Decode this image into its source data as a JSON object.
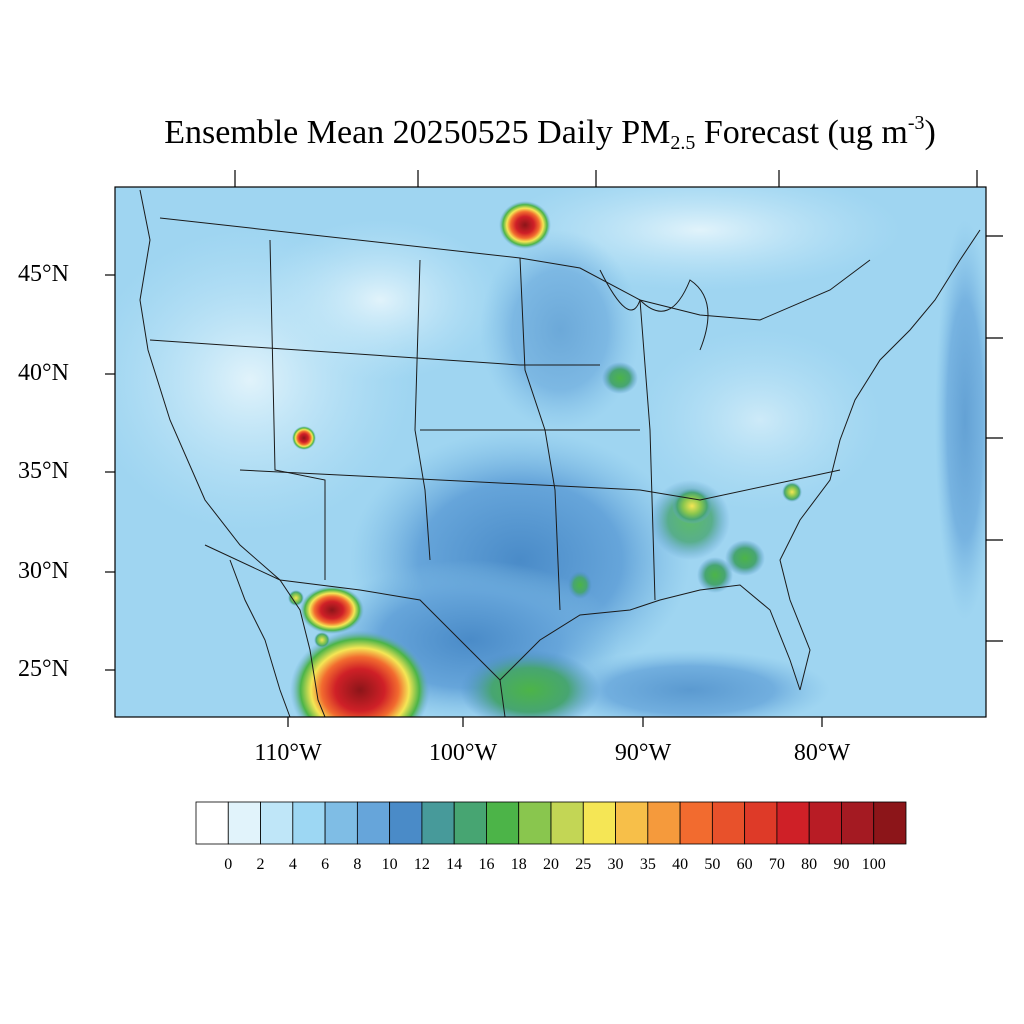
{
  "title": {
    "prefix": "Ensemble Mean 20250525 Daily PM",
    "subscript": "2.5",
    "middle": " Forecast (ug m",
    "superscript": "-3",
    "suffix": ")"
  },
  "axes": {
    "lat_labels": [
      "45°N",
      "40°N",
      "35°N",
      "30°N",
      "25°N"
    ],
    "lon_labels": [
      "110°W",
      "100°W",
      "90°W",
      "80°W"
    ]
  },
  "colorbar": {
    "labels": [
      "0",
      "2",
      "4",
      "6",
      "8",
      "10",
      "12",
      "14",
      "16",
      "18",
      "20",
      "25",
      "30",
      "35",
      "40",
      "50",
      "60",
      "70",
      "80",
      "90",
      "100"
    ],
    "colors": [
      "#ffffff",
      "#e1f3fb",
      "#bfe6f8",
      "#9dd7f3",
      "#7fbde5",
      "#66a5da",
      "#4a8bc8",
      "#479a9a",
      "#47a572",
      "#4cb448",
      "#89c64e",
      "#c3d655",
      "#f5e655",
      "#f7bf49",
      "#f59a3c",
      "#f26b2f",
      "#e8512b",
      "#de3a28",
      "#cf2027",
      "#b81c25",
      "#a41a22",
      "#8c1519"
    ]
  },
  "map": {
    "background_color": "#9fd5f1",
    "hotspots": [
      {
        "name": "north-dakota-manitoba-fire",
        "lon": -96.4,
        "lat": 47.6,
        "level": 100
      },
      {
        "name": "chihuahua-fire-north",
        "lon": -107.5,
        "lat": 27.9,
        "level": 80
      },
      {
        "name": "chihuahua-fire-south",
        "lon": -106.5,
        "lat": 23.5,
        "level": 100
      },
      {
        "name": "utah-point",
        "lon": -109.7,
        "lat": 36.8,
        "level": 60
      },
      {
        "name": "tennessee-point",
        "lon": -87.5,
        "lat": 33.3,
        "level": 30
      },
      {
        "name": "north-carolina-point",
        "lon": -81.5,
        "lat": 34.1,
        "level": 25
      },
      {
        "name": "gulf-coast-plume",
        "lon": -97.0,
        "lat": 23.8,
        "level": 18
      }
    ]
  }
}
